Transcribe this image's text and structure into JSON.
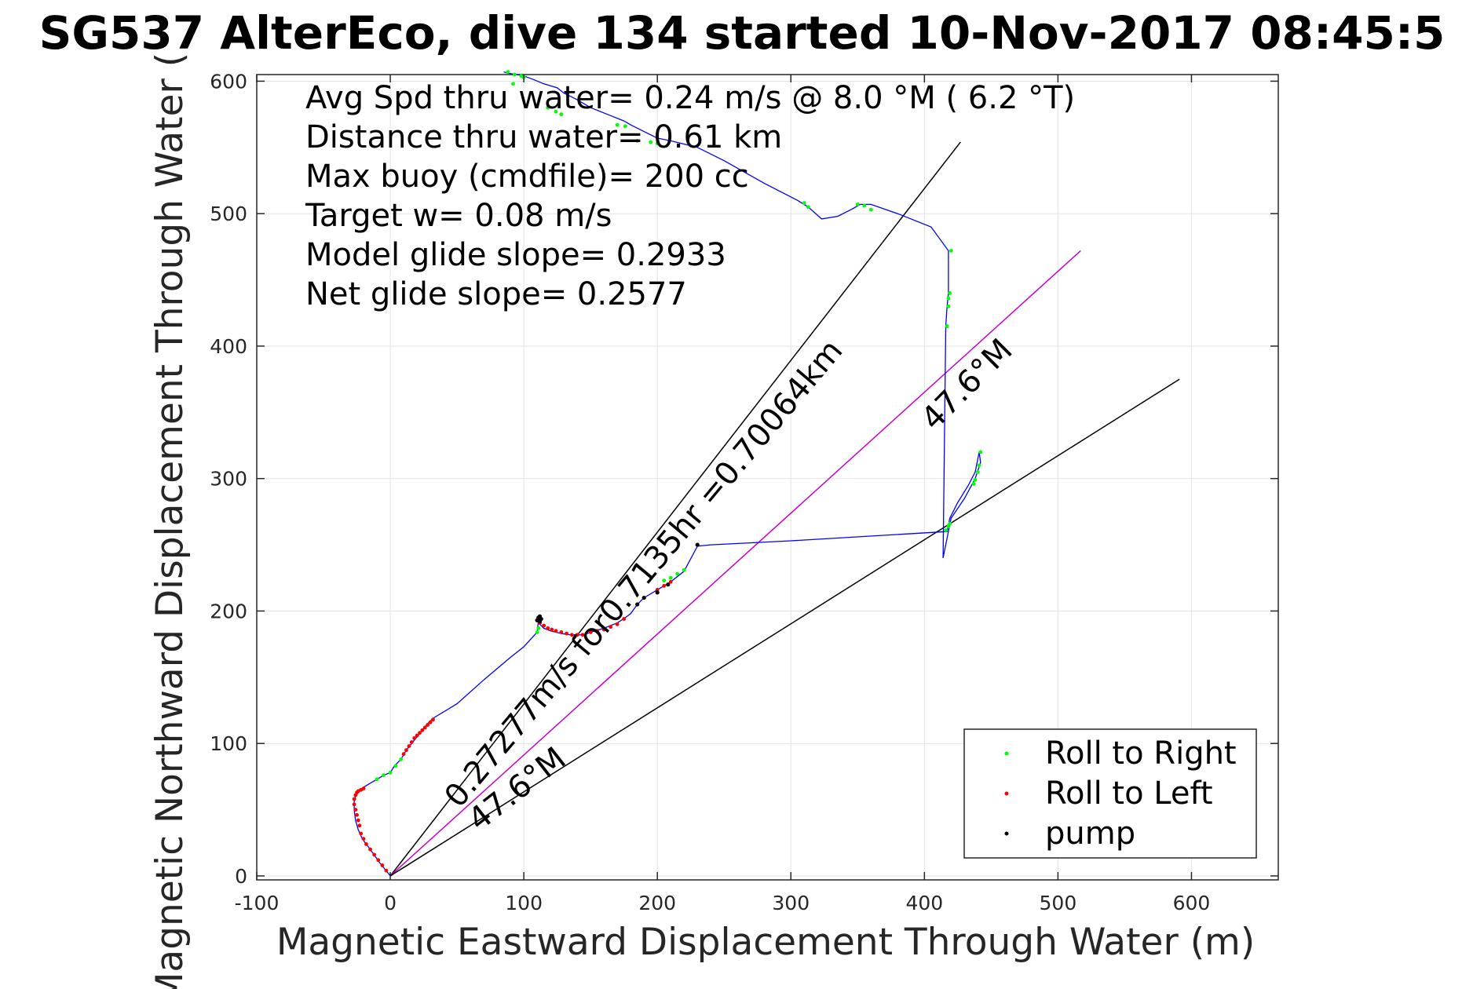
{
  "chart_data": {
    "type": "line",
    "title": "SG537 AlterEco, dive 134 started 10-Nov-2017 08:45:5",
    "xlabel": "Magnetic Eastward Displacement Through Water (m)",
    "ylabel": "Magnetic Northward Displacement Through Water (",
    "xlim": [
      -100,
      665
    ],
    "ylim": [
      -3,
      605
    ],
    "x_ticks": [
      -100,
      0,
      100,
      200,
      300,
      400,
      500,
      600
    ],
    "x_tick_labels": [
      "-100",
      "0",
      "100",
      "200",
      "300",
      "400",
      "500",
      "600"
    ],
    "y_ticks": [
      0,
      100,
      200,
      300,
      400,
      500,
      600
    ],
    "y_tick_labels": [
      "0",
      "100",
      "200",
      "300",
      "400",
      "500",
      "600"
    ],
    "grid": true,
    "legend_position": "bottom-right",
    "info_lines": [
      "Avg Spd thru water=  0.24 m/s @   8.0 °M (  6.2 °T)",
      "Distance thru water=  0.61 km",
      "Max buoy (cmdfile)= 200 cc",
      "Target w= 0.08 m/s",
      "Model glide slope= 0.2933",
      "Net glide slope= 0.2577"
    ],
    "annotations": {
      "speed_text": "0.27277m/s for0.7135hr =0.70064km",
      "heading_upper": "47.6°M",
      "heading_lower": "47.6°M"
    },
    "track": {
      "color": "#0000ff",
      "x": [
        0,
        -8,
        -15,
        -21,
        -24,
        -26,
        -27,
        -27,
        -26,
        -24,
        -22,
        -20,
        -15,
        -10,
        -5,
        0,
        3,
        8,
        12,
        16,
        20,
        24,
        28,
        32,
        50,
        70,
        90,
        100,
        110,
        111,
        110,
        112,
        115,
        120,
        128,
        135,
        140,
        145,
        150,
        160,
        170,
        176,
        180,
        185,
        190,
        200,
        210,
        220,
        230,
        240,
        300,
        417,
        419,
        425,
        433,
        438,
        441,
        442,
        438,
        430,
        420,
        414,
        416,
        417,
        418,
        418,
        405,
        380,
        360,
        352,
        345,
        335,
        323,
        313,
        305,
        280,
        250,
        230,
        210,
        200,
        190,
        180,
        175,
        165,
        150,
        140,
        130,
        125,
        115,
        108,
        100,
        95,
        88,
        85
      ],
      "y": [
        0,
        10,
        20,
        28,
        35,
        42,
        50,
        56,
        60,
        63,
        65,
        67,
        70,
        73,
        76,
        78,
        83,
        88,
        95,
        100,
        105,
        110,
        115,
        119,
        130,
        148,
        165,
        173,
        184,
        193,
        196,
        190,
        187,
        185,
        183,
        182,
        182,
        182,
        184,
        187,
        191,
        195,
        198,
        205,
        210,
        216,
        222,
        230,
        249,
        250,
        253,
        260,
        270,
        282,
        295,
        305,
        320,
        312,
        300,
        285,
        270,
        240,
        415,
        430,
        440,
        472,
        490,
        500,
        507,
        507,
        503,
        498,
        496,
        505,
        510,
        523,
        540,
        550,
        555,
        557,
        562,
        567,
        570,
        574,
        580,
        586,
        591,
        595,
        598,
        601,
        604,
        605,
        606,
        607
      ]
    },
    "reference_lines": [
      {
        "name": "",
        "color": "#000000",
        "x": [
          0,
          427
        ],
        "y": [
          0,
          554
        ]
      },
      {
        "name": "",
        "color": "#cc00cc",
        "x": [
          0,
          517
        ],
        "y": [
          0,
          472
        ]
      },
      {
        "name": "",
        "color": "#000000",
        "x": [
          0,
          591
        ],
        "y": [
          0,
          375
        ]
      }
    ],
    "series": [
      {
        "name": "Roll to Right",
        "color": "#00ff00",
        "x": [
          -10,
          -5,
          0,
          4,
          8,
          110,
          111,
          92,
          100,
          118,
          124,
          128,
          170,
          176,
          185,
          195,
          200,
          205,
          210,
          215,
          220,
          416,
          418,
          419,
          437,
          438,
          440,
          441,
          442,
          417,
          418,
          418,
          419,
          420,
          310,
          313,
          350,
          355,
          360,
          88,
          93,
          98
        ],
        "y": [
          73,
          76,
          78,
          83,
          88,
          184,
          187,
          598,
          603,
          580,
          577,
          575,
          567,
          566,
          555,
          554,
          553,
          223,
          225,
          228,
          231,
          261,
          264,
          266,
          296,
          299,
          305,
          310,
          320,
          415,
          430,
          436,
          440,
          472,
          508,
          505,
          507,
          506,
          503,
          607,
          605,
          604
        ]
      },
      {
        "name": "Roll to Left",
        "color": "#ff0000",
        "x": [
          -3,
          -6,
          -9,
          -12,
          -15,
          -18,
          -20,
          -22,
          -23,
          -24,
          -25,
          -26,
          -27,
          -27,
          -26,
          -25,
          -24,
          -22,
          -20,
          10,
          12,
          14,
          16,
          18,
          20,
          22,
          24,
          26,
          28,
          30,
          32,
          112,
          115,
          118,
          121,
          124,
          128,
          132,
          136,
          140,
          144,
          150,
          155,
          160,
          165,
          170,
          175,
          200,
          205,
          210
        ],
        "y": [
          4,
          8,
          12,
          16,
          20,
          24,
          28,
          32,
          38,
          42,
          46,
          50,
          54,
          58,
          61,
          63,
          64,
          65,
          66,
          92,
          95,
          98,
          101,
          104,
          106,
          108,
          110,
          112,
          114,
          116,
          118,
          191,
          189,
          187,
          186,
          185,
          184,
          183,
          182,
          182,
          182,
          184,
          185,
          186,
          188,
          190,
          194,
          216,
          219,
          222
        ]
      },
      {
        "name": "pump",
        "color": "#000000",
        "x": [
          110,
          111,
          112,
          113,
          112,
          111,
          230,
          185,
          190,
          200,
          208
        ],
        "y": [
          193,
          195,
          196,
          194,
          192,
          195,
          250,
          205,
          210,
          214,
          220
        ]
      }
    ]
  }
}
